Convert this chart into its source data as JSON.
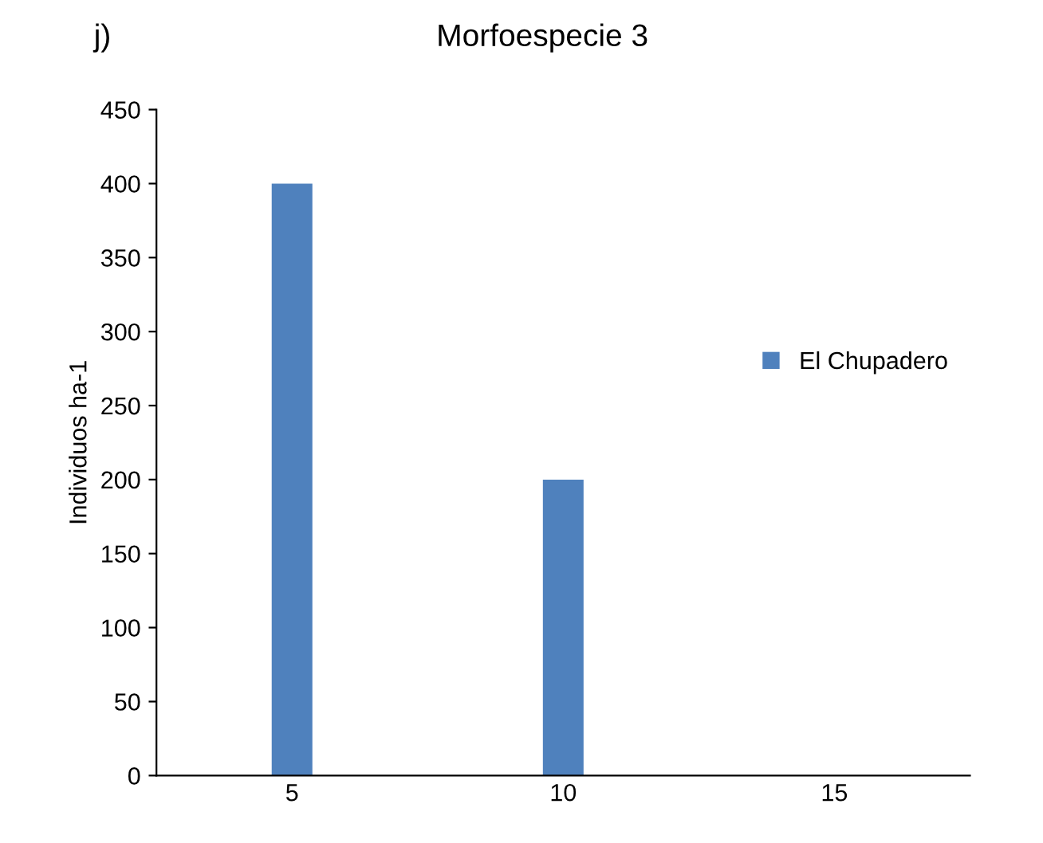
{
  "chart_data": {
    "type": "bar",
    "title": "Morfoespecie 3",
    "ylabel": "Individuos ha-1",
    "annotations": [
      "j)"
    ],
    "categories": [
      "5",
      "10",
      "15"
    ],
    "series": [
      {
        "name": "El Chupadero",
        "color": "#4f81bd",
        "values": [
          400,
          200,
          0
        ]
      }
    ],
    "ylim": [
      0,
      450
    ],
    "yticks": [
      0,
      50,
      100,
      150,
      200,
      250,
      300,
      350,
      400,
      450
    ],
    "grid": false,
    "legend": "right"
  }
}
